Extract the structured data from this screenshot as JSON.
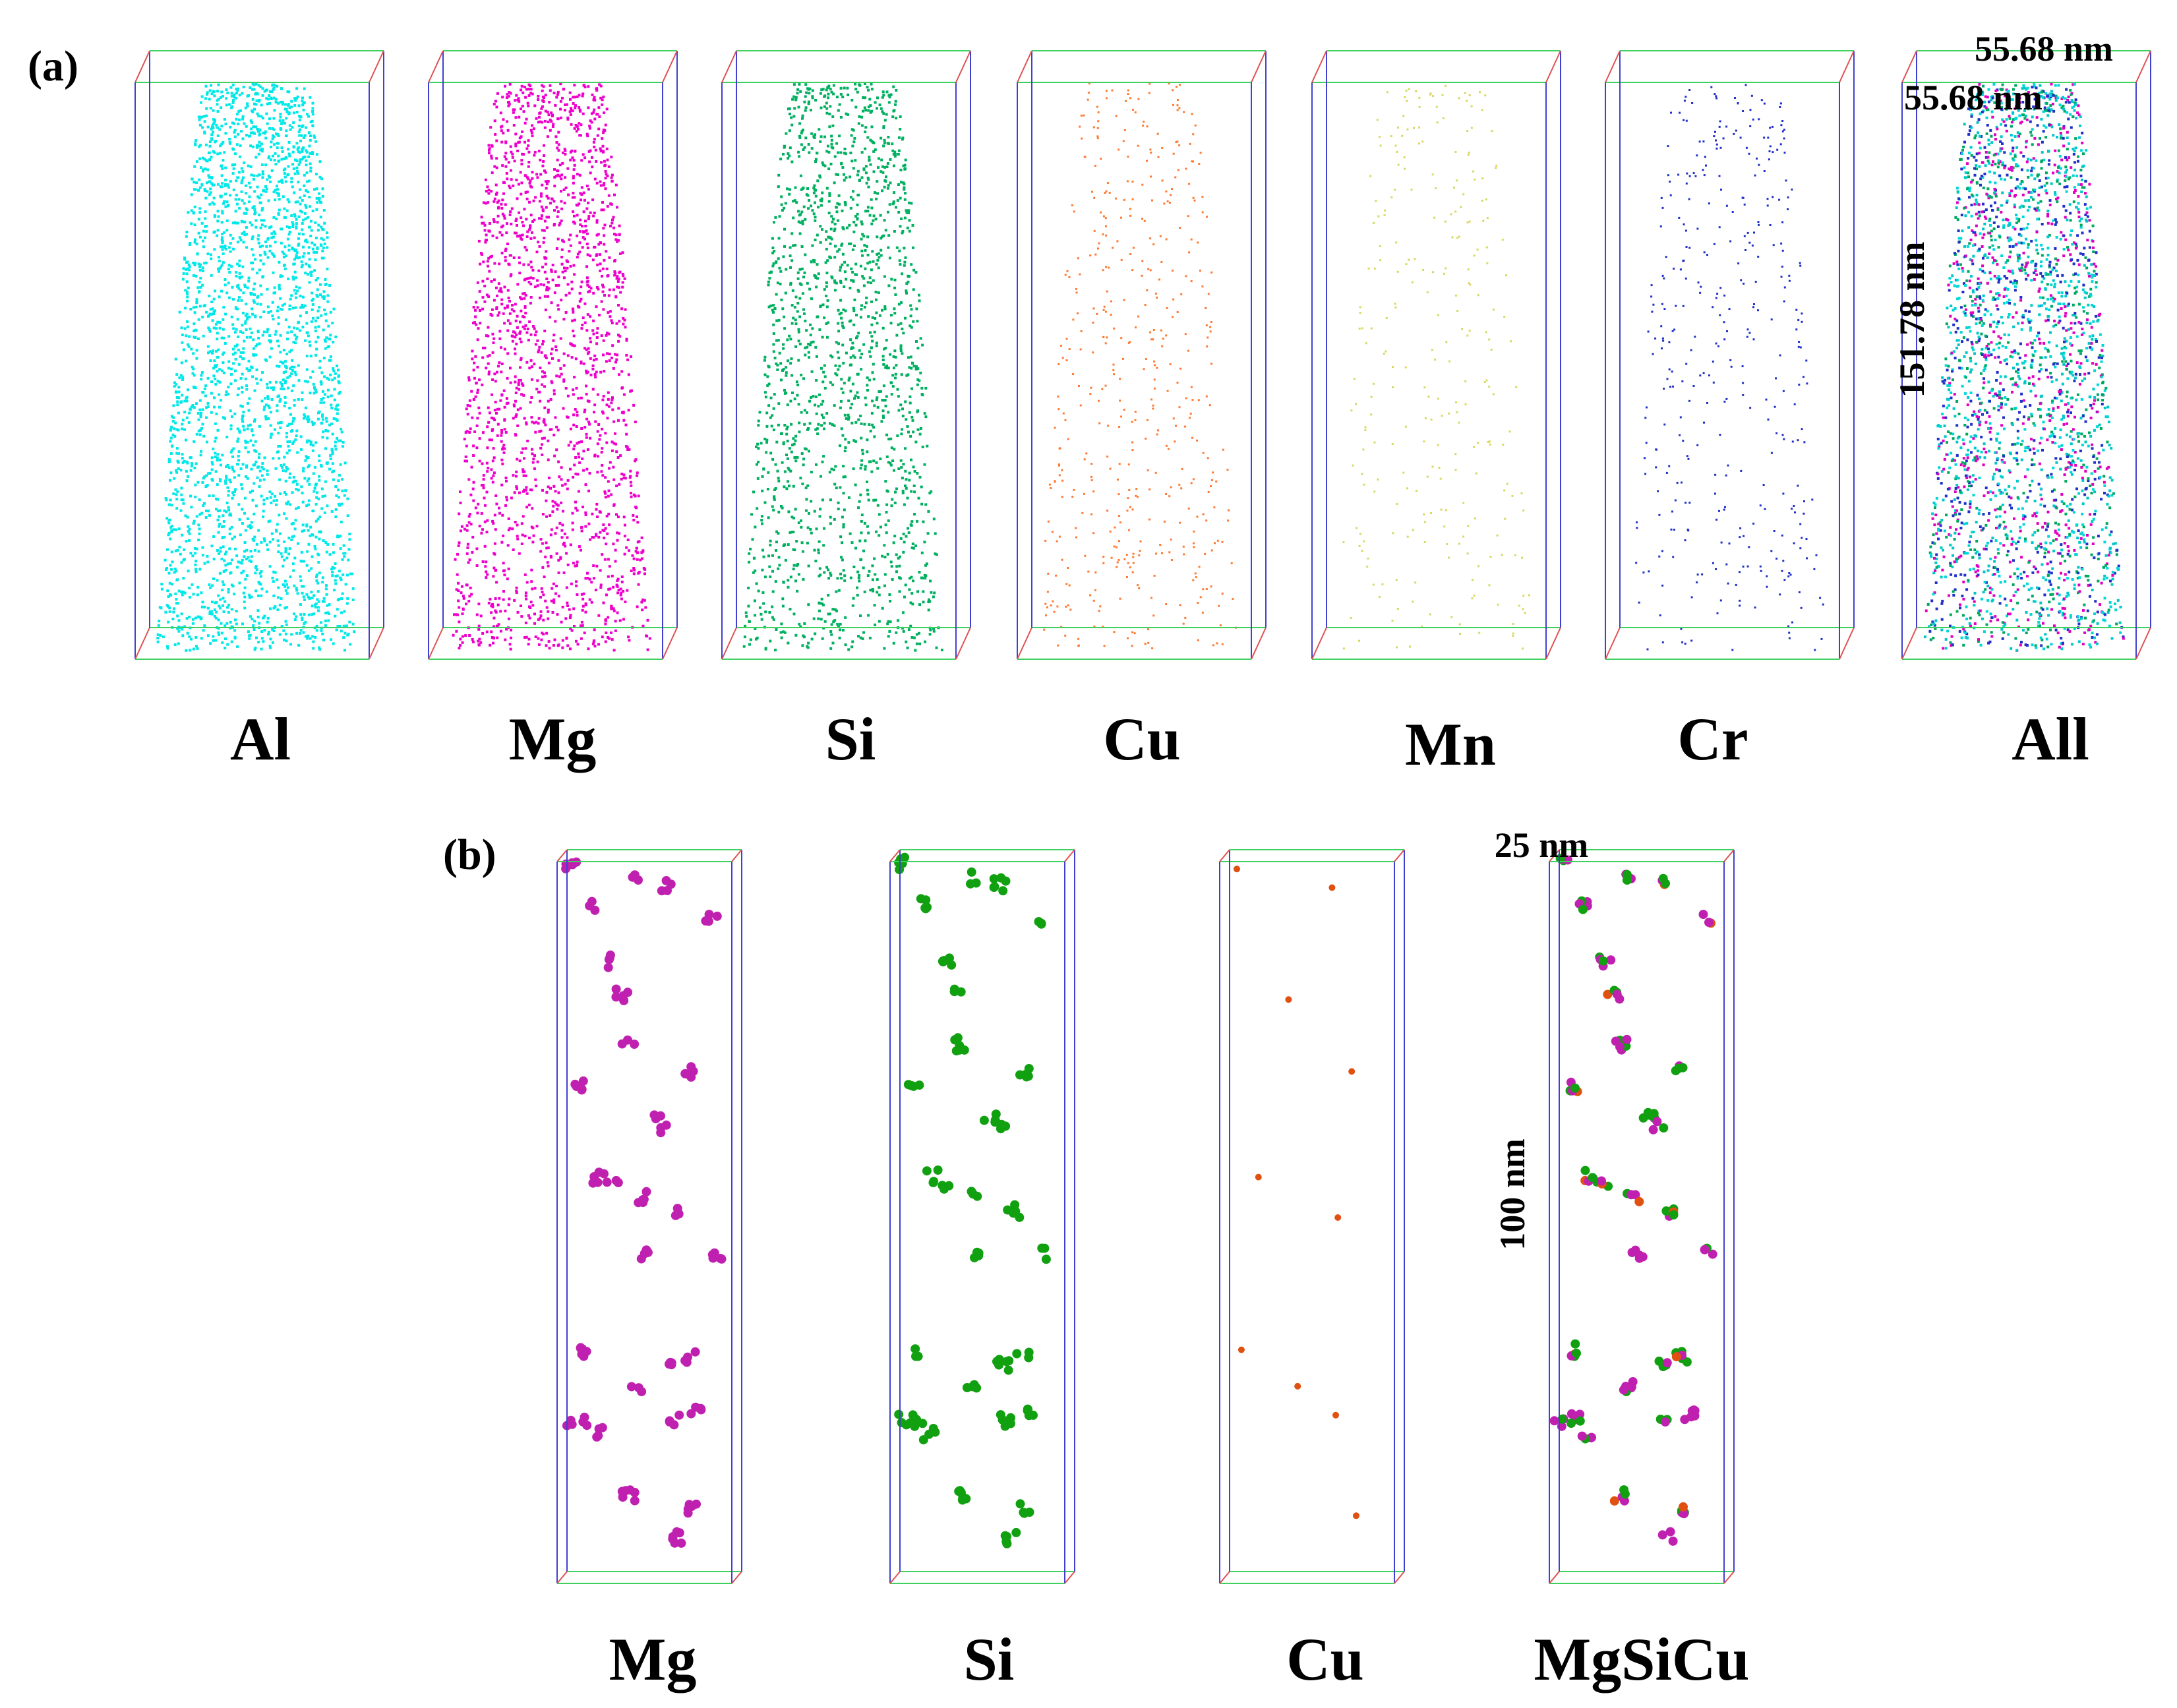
{
  "figure": {
    "panel_a": {
      "label": "(a)",
      "maps": [
        {
          "element": "Al",
          "color": "#00e8e8",
          "density": 1.0
        },
        {
          "element": "Mg",
          "color": "#ee00cc",
          "density": 0.75
        },
        {
          "element": "Si",
          "color": "#00b060",
          "density": 0.62
        },
        {
          "element": "Cu",
          "color": "#ff7a30",
          "density": 0.18
        },
        {
          "element": "Mn",
          "color": "#d8d860",
          "density": 0.1
        },
        {
          "element": "Cr",
          "color": "#2030c8",
          "density": 0.14
        },
        {
          "element": "All",
          "color": "#00d0d0",
          "density": 1.0
        }
      ],
      "dimensions": {
        "width_top": "55.68 nm",
        "width_side": "55.68 nm",
        "height": "151.78 nm"
      }
    },
    "panel_b": {
      "label": "(b)",
      "maps": [
        {
          "element": "Mg",
          "color": "#c020b0"
        },
        {
          "element": "Si",
          "color": "#10a010"
        },
        {
          "element": "Cu",
          "color": "#e05010"
        },
        {
          "element": "MgSiCu",
          "color": "#c020b0"
        }
      ],
      "dimensions": {
        "width": "25 nm",
        "height": "100 nm"
      }
    },
    "colors": {
      "box_green": "#40d060",
      "box_blue": "#4040d0",
      "box_red": "#e05050"
    }
  }
}
